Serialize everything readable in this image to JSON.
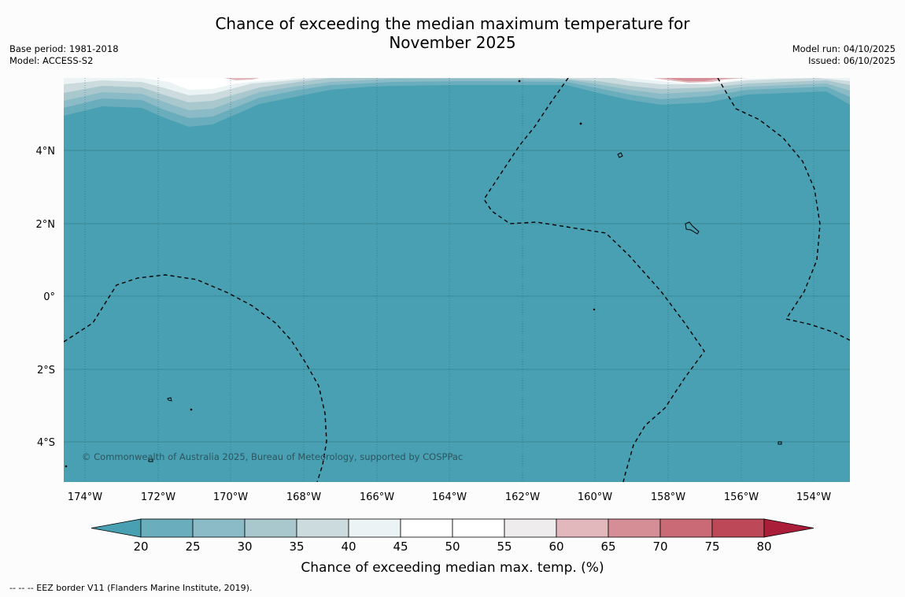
{
  "title": {
    "line1": "Chance of exceeding the median maximum temperature for",
    "line2": "November 2025"
  },
  "meta_left": {
    "base_period": "Base period: 1981-2018",
    "model": "Model: ACCESS-S2"
  },
  "meta_right": {
    "model_run": "Model run: 04/10/2025",
    "issued": "Issued: 06/10/2025"
  },
  "map": {
    "base_color": "#48a0b2",
    "x_ticks": [
      "174°W",
      "172°W",
      "170°W",
      "168°W",
      "166°W",
      "164°W",
      "162°W",
      "160°W",
      "158°W",
      "156°W",
      "154°W"
    ],
    "y_ticks": [
      "4°N",
      "2°N",
      "0°",
      "2°S",
      "4°S"
    ],
    "copyright": "© Commonwealth of Australia 2025, Bureau of Meteorology, supported by COSPPac"
  },
  "colorbar": {
    "label": "Chance of exceeding median max. temp. (%)",
    "ticks": [
      "20",
      "25",
      "30",
      "35",
      "40",
      "45",
      "50",
      "55",
      "60",
      "65",
      "70",
      "75",
      "80"
    ],
    "colors": [
      "#48a0b2",
      "#6aadbc",
      "#8abbc6",
      "#a9c8ce",
      "#cbdbde",
      "#ecf3f4",
      "#ffffff",
      "#ffffff",
      "#eeeced",
      "#e3b8bd",
      "#d58d96",
      "#c96a76",
      "#bd4858",
      "#ab1e3a"
    ]
  },
  "footer": "--  --  -- EEZ border V11 (Flanders Marine Institute, 2019)."
}
